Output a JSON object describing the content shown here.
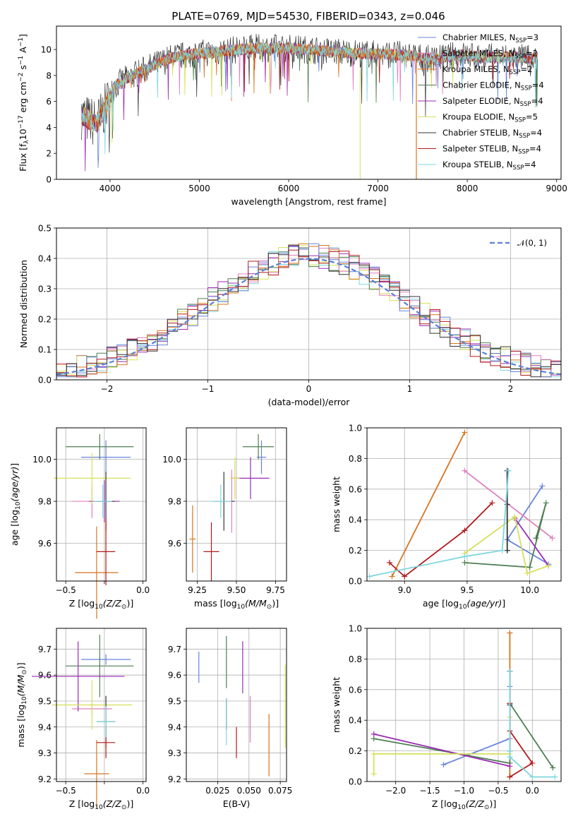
{
  "title": "PLATE=0769, MJD=54530, FIBERID=0343, z=0.046",
  "colors": [
    "#6a84dd",
    "#e07fbd",
    "#d9741e",
    "#4f7f53",
    "#9b2bb4",
    "#d6e05a",
    "#333333",
    "#b3191c",
    "#7ed6de"
  ],
  "legend_labels": [
    "Chabrier MILES, N",
    "Salpeter MILES, N",
    "Kroupa MILES, N",
    "Chabrier ELODIE, N",
    "Salpeter ELODIE, N",
    "Kroupa ELODIE, N",
    "Chabrier STELIB, N",
    "Salpeter STELIB, N",
    "Kroupa STELIB, N"
  ],
  "legend_sub": "SSP",
  "legend_counts": [
    "=3",
    "=2",
    "=2",
    "=4",
    "=4",
    "=5",
    "=4",
    "=4",
    "=4"
  ],
  "chart_data": [
    {
      "id": "spectrum",
      "type": "line",
      "xlabel": "wavelength [Angstrom, rest frame]",
      "ylabel": "Flux [f",
      "xlim": [
        3400,
        9050
      ],
      "ylim": [
        0,
        11.8
      ],
      "xticks": [
        4000,
        5000,
        6000,
        7000,
        8000,
        9000
      ],
      "yticks": [
        0,
        2,
        4,
        6,
        8,
        10
      ],
      "grid": false,
      "legend_position": "right",
      "series_envelope": {
        "x": [
          3680,
          3750,
          3850,
          3950,
          4050,
          4200,
          4400,
          4700,
          5000,
          5300,
          5600,
          6000,
          6400,
          6800,
          7200,
          7400,
          7600,
          7900,
          8200,
          8500,
          8800
        ],
        "y": [
          5.0,
          4.6,
          4.3,
          5.5,
          7.2,
          7.8,
          8.5,
          9.4,
          9.7,
          9.9,
          10.1,
          10.1,
          9.9,
          9.7,
          9.6,
          9.5,
          9.2,
          9.6,
          9.4,
          9.4,
          9.3
        ]
      }
    },
    {
      "id": "residuals",
      "type": "histogram",
      "xlabel": "(data-model)/error",
      "ylabel": "Normed distribution",
      "xlim": [
        -2.5,
        2.5
      ],
      "ylim": [
        0,
        0.5
      ],
      "xticks": [
        -2,
        -1,
        0,
        1,
        2
      ],
      "yticks": [
        0.0,
        0.1,
        0.2,
        0.3,
        0.4,
        0.5
      ],
      "grid": true,
      "legend_position": "top-right",
      "reference_label": "𝒩(0, 1)",
      "bin_width": 0.1
    },
    {
      "id": "age-vs-Z",
      "type": "errorbar",
      "xlabel": "Z [log",
      "ylabel": "age  [log",
      "xlim": [
        -0.56,
        0.02
      ],
      "ylim": [
        9.42,
        10.15
      ],
      "xticks": [
        -0.5,
        -0.25,
        0.0
      ],
      "yticks": [
        9.6,
        9.8,
        10.0
      ],
      "grid": true,
      "points": [
        {
          "x": -0.24,
          "xerr": 0.16,
          "y": 10.01,
          "yerr": 0.08,
          "c": 0
        },
        {
          "x": -0.33,
          "xerr": 0.13,
          "y": 9.8,
          "yerr": 0.08,
          "c": 1
        },
        {
          "x": -0.3,
          "xerr": 0.14,
          "y": 9.46,
          "yerr": 0.22,
          "c": 2
        },
        {
          "x": -0.28,
          "xerr": 0.22,
          "y": 10.06,
          "yerr": 0.06,
          "c": 3
        },
        {
          "x": -0.25,
          "xerr": 0.1,
          "y": 9.8,
          "yerr": 0.1,
          "c": 4
        },
        {
          "x": -0.33,
          "xerr": 0.25,
          "y": 9.91,
          "yerr": 0.12,
          "c": 5
        },
        {
          "x": -0.24,
          "xerr": 0.06,
          "y": 9.8,
          "yerr": 0.14,
          "c": 6
        },
        {
          "x": -0.24,
          "xerr": 0.06,
          "y": 9.56,
          "yerr": 0.16,
          "c": 7
        },
        {
          "x": -0.26,
          "xerr": 0.06,
          "y": 9.8,
          "yerr": 0.08,
          "c": 8
        }
      ]
    },
    {
      "id": "age-vs-mass",
      "type": "errorbar",
      "xlabel": "mass [log",
      "xlim": [
        9.18,
        9.82
      ],
      "ylim": [
        9.42,
        10.15
      ],
      "xticks": [
        9.25,
        9.5,
        9.75
      ],
      "yticks": [
        9.6,
        9.8,
        10.0
      ],
      "grid": true,
      "points": [
        {
          "x": 9.66,
          "xerr": 0.03,
          "y": 10.01,
          "yerr": 0.08,
          "c": 0
        },
        {
          "x": 9.47,
          "xerr": 0.01,
          "y": 9.8,
          "yerr": 0.15,
          "c": 1
        },
        {
          "x": 9.22,
          "xerr": 0.02,
          "y": 9.62,
          "yerr": 0.16,
          "c": 2
        },
        {
          "x": 9.64,
          "xerr": 0.1,
          "y": 10.06,
          "yerr": 0.06,
          "c": 3
        },
        {
          "x": 9.59,
          "xerr": 0.12,
          "y": 9.91,
          "yerr": 0.1,
          "c": 4
        },
        {
          "x": 9.49,
          "xerr": 0.03,
          "y": 9.91,
          "yerr": 0.1,
          "c": 5
        },
        {
          "x": 9.42,
          "xerr": 0.07,
          "y": 9.8,
          "yerr": 0.14,
          "c": 6
        },
        {
          "x": 9.34,
          "xerr": 0.05,
          "y": 9.56,
          "yerr": 0.14,
          "c": 7
        },
        {
          "x": 9.4,
          "xerr": 0.07,
          "y": 9.8,
          "yerr": 0.08,
          "c": 8
        }
      ]
    },
    {
      "id": "weight-vs-age",
      "type": "line",
      "xlabel": "age  [log",
      "ylabel": "mass weight",
      "xlim": [
        8.7,
        10.25
      ],
      "ylim": [
        0,
        1.0
      ],
      "xticks": [
        9.0,
        9.5,
        10.0
      ],
      "yticks": [
        0.0,
        0.2,
        0.4,
        0.6,
        0.8,
        1.0
      ],
      "grid": true,
      "series": [
        {
          "c": 0,
          "x": [
            10.1,
            9.82,
            10.15
          ],
          "y": [
            0.62,
            0.27,
            0.11
          ]
        },
        {
          "c": 1,
          "x": [
            9.48,
            10.18
          ],
          "y": [
            0.72,
            0.28
          ]
        },
        {
          "c": 2,
          "x": [
            8.9,
            9.48
          ],
          "y": [
            0.03,
            0.97
          ]
        },
        {
          "c": 3,
          "x": [
            9.48,
            10.0,
            10.13,
            10.05
          ],
          "y": [
            0.12,
            0.09,
            0.51,
            0.28
          ]
        },
        {
          "c": 4,
          "x": [
            9.88,
            10.15
          ],
          "y": [
            0.41,
            0.1
          ]
        },
        {
          "c": 5,
          "x": [
            9.48,
            9.88,
            9.98,
            10.15
          ],
          "y": [
            0.18,
            0.42,
            0.05,
            0.1
          ]
        },
        {
          "c": 6,
          "x": [
            9.82,
            9.82,
            9.82,
            9.82
          ],
          "y": [
            0.72,
            0.5,
            0.2,
            0.2
          ]
        },
        {
          "c": 7,
          "x": [
            8.88,
            9.0,
            9.48,
            9.7
          ],
          "y": [
            0.12,
            0.03,
            0.33,
            0.51
          ]
        },
        {
          "c": 8,
          "x": [
            8.72,
            9.48,
            9.78,
            9.83
          ],
          "y": [
            0.03,
            0.16,
            0.2,
            0.72
          ]
        }
      ]
    },
    {
      "id": "mass-vs-Z",
      "type": "errorbar",
      "xlabel": "Z [log",
      "ylabel": "mass [log",
      "xlim": [
        -0.56,
        0.02
      ],
      "ylim": [
        9.19,
        9.78
      ],
      "xticks": [
        -0.5,
        -0.25,
        0.0
      ],
      "yticks": [
        9.2,
        9.3,
        9.4,
        9.5,
        9.6,
        9.7
      ],
      "grid": true,
      "points": [
        {
          "x": -0.24,
          "xerr": 0.16,
          "y": 9.66,
          "yerr": 0.02,
          "c": 0
        },
        {
          "x": -0.33,
          "xerr": 0.13,
          "y": 9.47,
          "yerr": 0.02,
          "c": 1
        },
        {
          "x": -0.3,
          "xerr": 0.08,
          "y": 9.22,
          "yerr": 0.13,
          "c": 2
        },
        {
          "x": -0.28,
          "xerr": 0.22,
          "y": 9.635,
          "yerr": 0.12,
          "c": 3
        },
        {
          "x": -0.42,
          "xerr": 0.3,
          "y": 9.595,
          "yerr": 0.135,
          "c": 4
        },
        {
          "x": -0.33,
          "xerr": 0.26,
          "y": 9.485,
          "yerr": 0.095,
          "c": 5
        },
        {
          "x": -0.24,
          "xerr": 0.06,
          "y": 9.42,
          "yerr": 0.1,
          "c": 6
        },
        {
          "x": -0.24,
          "xerr": 0.06,
          "y": 9.34,
          "yerr": 0.06,
          "c": 7
        },
        {
          "x": -0.24,
          "xerr": 0.06,
          "y": 9.42,
          "yerr": 0.06,
          "c": 8
        }
      ]
    },
    {
      "id": "mass-vs-ebv",
      "type": "errorbar",
      "xlabel": "E(B-V)",
      "xlim": [
        0.0,
        0.08
      ],
      "ylim": [
        9.19,
        9.78
      ],
      "xticks": [
        0.025,
        0.05,
        0.075
      ],
      "yticks": [
        9.2,
        9.3,
        9.4,
        9.5,
        9.6,
        9.7
      ],
      "grid": true,
      "points": [
        {
          "x": 0.01,
          "y": 9.63,
          "yerr": 0.06,
          "c": 0
        },
        {
          "x": 0.051,
          "y": 9.43,
          "yerr": 0.09,
          "c": 1
        },
        {
          "x": 0.066,
          "y": 9.33,
          "yerr": 0.12,
          "c": 2
        },
        {
          "x": 0.032,
          "y": 9.65,
          "yerr": 0.1,
          "c": 3
        },
        {
          "x": 0.045,
          "y": 9.63,
          "yerr": 0.1,
          "c": 4
        },
        {
          "x": 0.079,
          "y": 9.48,
          "yerr": 0.16,
          "c": 5
        },
        {
          "x": 0.032,
          "y": 9.45,
          "yerr": 0.06,
          "c": 6
        },
        {
          "x": 0.04,
          "y": 9.34,
          "yerr": 0.06,
          "c": 7
        },
        {
          "x": 0.032,
          "y": 9.42,
          "yerr": 0.09,
          "c": 8
        }
      ]
    },
    {
      "id": "weight-vs-Z",
      "type": "line",
      "xlabel": "Z [log",
      "ylabel": "mass weight",
      "xlim": [
        -2.42,
        0.42
      ],
      "ylim": [
        0,
        1.0
      ],
      "xticks": [
        -2.0,
        -1.5,
        -1.0,
        -0.5,
        0.0
      ],
      "yticks": [
        0.0,
        0.2,
        0.4,
        0.6,
        0.8,
        1.0
      ],
      "grid": true,
      "series": [
        {
          "c": 0,
          "x": [
            -1.3,
            -0.33,
            -0.33
          ],
          "y": [
            0.11,
            0.28,
            0.62
          ]
        },
        {
          "c": 1,
          "x": [
            -0.33,
            -0.33
          ],
          "y": [
            0.28,
            0.72
          ]
        },
        {
          "c": 2,
          "x": [
            -0.33,
            -0.33
          ],
          "y": [
            0.03,
            0.97
          ]
        },
        {
          "c": 3,
          "x": [
            -2.32,
            -0.33,
            -0.33,
            0.3
          ],
          "y": [
            0.28,
            0.12,
            0.51,
            0.09
          ]
        },
        {
          "c": 4,
          "x": [
            -2.32,
            -0.33
          ],
          "y": [
            0.31,
            0.1
          ]
        },
        {
          "c": 5,
          "x": [
            -2.32,
            -2.32,
            -0.33,
            -0.33
          ],
          "y": [
            0.05,
            0.18,
            0.18,
            0.42
          ]
        },
        {
          "c": 6,
          "x": [
            -0.33,
            -0.33,
            -0.33
          ],
          "y": [
            0.72,
            0.5,
            0.2
          ]
        },
        {
          "c": 7,
          "x": [
            -0.33,
            -0.33,
            0.0,
            -0.33
          ],
          "y": [
            0.51,
            0.33,
            0.12,
            0.03
          ]
        },
        {
          "c": 8,
          "x": [
            -0.33,
            -0.33,
            -0.33,
            0.0,
            0.33
          ],
          "y": [
            0.72,
            0.2,
            0.16,
            0.03,
            0.03
          ]
        }
      ]
    }
  ]
}
